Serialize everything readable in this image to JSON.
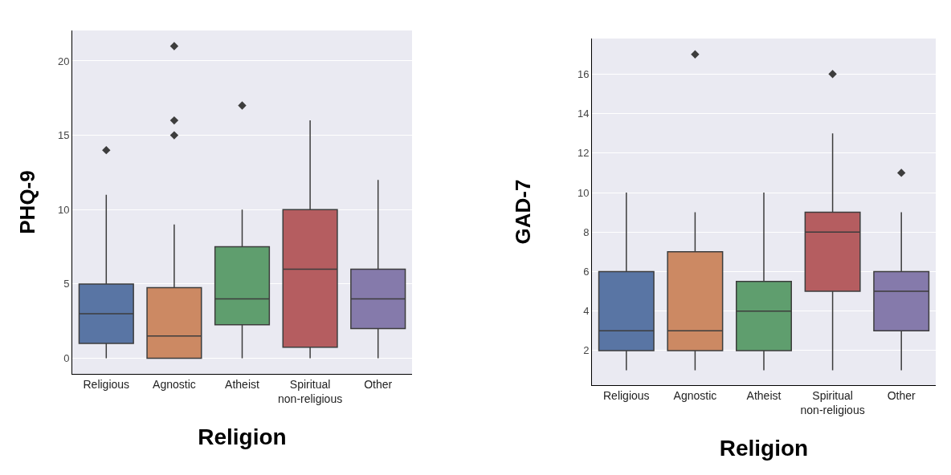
{
  "chart_data": [
    {
      "type": "box",
      "xlabel": "Religion",
      "ylabel": "PHQ-9",
      "categories": [
        "Religious",
        "Agnostic",
        "Atheist",
        "Spiritual non-religious",
        "Other"
      ],
      "colors": [
        "#5975a4",
        "#cc8963",
        "#5f9e6e",
        "#b55d60",
        "#857aab"
      ],
      "boxes": [
        {
          "low": 0,
          "q1": 1,
          "median": 3,
          "q3": 5,
          "high": 11,
          "outliers": [
            14
          ]
        },
        {
          "low": 0,
          "q1": 0,
          "median": 1.5,
          "q3": 4.75,
          "high": 9,
          "outliers": [
            15,
            16,
            21
          ]
        },
        {
          "low": 0,
          "q1": 2.25,
          "median": 4,
          "q3": 7.5,
          "high": 10,
          "outliers": [
            17
          ]
        },
        {
          "low": 0,
          "q1": 0.75,
          "median": 6,
          "q3": 10,
          "high": 16
        },
        {
          "low": 0,
          "q1": 2,
          "median": 4,
          "q3": 6,
          "high": 12
        }
      ],
      "ylim": [
        -1.05,
        22.05
      ],
      "yticks": [
        0,
        5,
        10,
        15,
        20
      ],
      "grid": "y",
      "marker": "diamond"
    },
    {
      "type": "box",
      "xlabel": "Religion",
      "ylabel": "GAD-7",
      "categories": [
        "Religious",
        "Agnostic",
        "Atheist",
        "Spiritual non-religious",
        "Other"
      ],
      "colors": [
        "#5975a4",
        "#cc8963",
        "#5f9e6e",
        "#b55d60",
        "#857aab"
      ],
      "boxes": [
        {
          "low": 1,
          "q1": 2,
          "median": 3,
          "q3": 6,
          "high": 10
        },
        {
          "low": 1,
          "q1": 2,
          "median": 3,
          "q3": 7,
          "high": 9,
          "outliers": [
            17
          ]
        },
        {
          "low": 1,
          "q1": 2,
          "median": 4,
          "q3": 5.5,
          "high": 10
        },
        {
          "low": 1,
          "q1": 5,
          "median": 8,
          "q3": 9,
          "high": 13,
          "outliers": [
            16
          ]
        },
        {
          "low": 1,
          "q1": 3,
          "median": 5,
          "q3": 6,
          "high": 9,
          "outliers": [
            11
          ]
        }
      ],
      "ylim": [
        0.25,
        17.8
      ],
      "yticks": [
        2,
        4,
        6,
        8,
        10,
        12,
        14,
        16
      ],
      "grid": "y",
      "marker": "diamond"
    }
  ]
}
